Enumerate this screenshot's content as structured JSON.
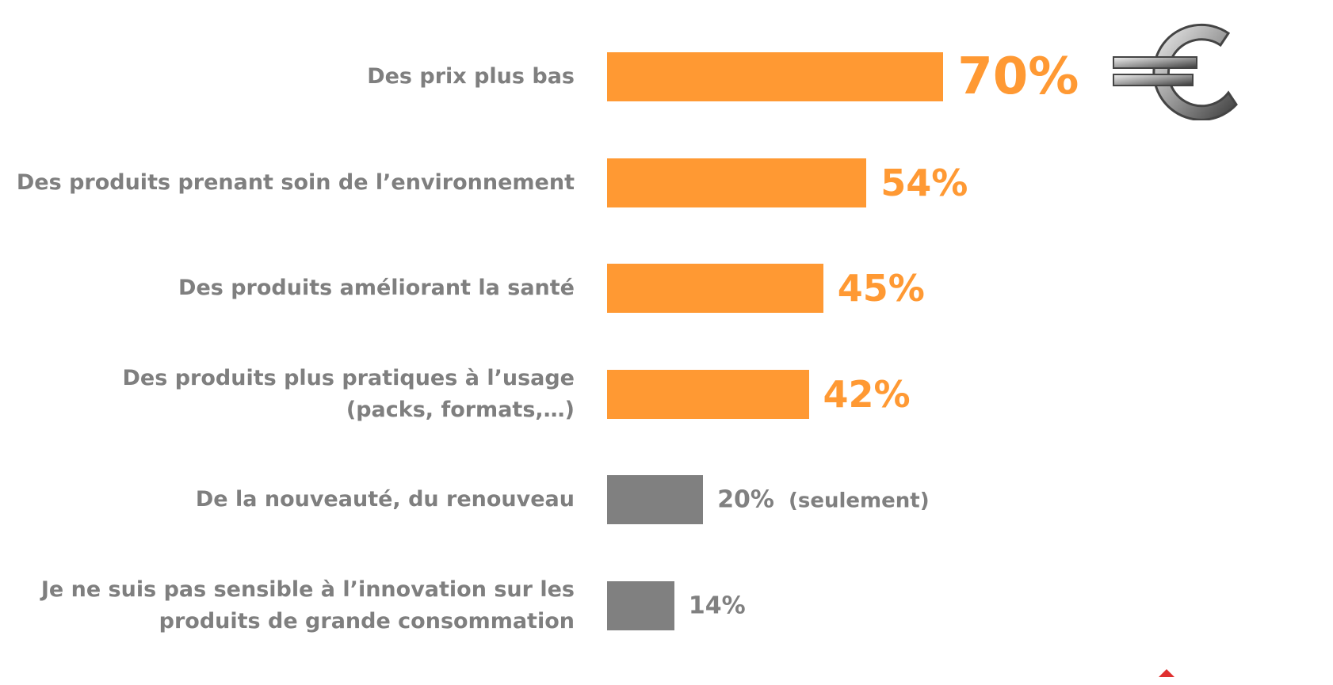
{
  "chart_data": {
    "type": "bar",
    "orientation": "horizontal",
    "categories": [
      "Des prix plus bas",
      "Des produits prenant soin de l’environnement",
      "Des produits améliorant la santé",
      "Des produits plus pratiques à l’usage\n(packs, formats,…)",
      "De la nouveauté, du renouveau",
      "Je ne suis pas sensible à l’innovation sur les\nproduits de grande consommation"
    ],
    "values": [
      70,
      54,
      45,
      42,
      20,
      14
    ],
    "value_labels": [
      "70%",
      "54%",
      "45%",
      "42%",
      "20%",
      "14%"
    ],
    "colors": [
      "#ff9933",
      "#ff9933",
      "#ff9933",
      "#ff9933",
      "#808080",
      "#808080"
    ],
    "annotations": [
      null,
      null,
      null,
      null,
      "(seulement)",
      null
    ],
    "xlim": [
      0,
      100
    ]
  }
}
